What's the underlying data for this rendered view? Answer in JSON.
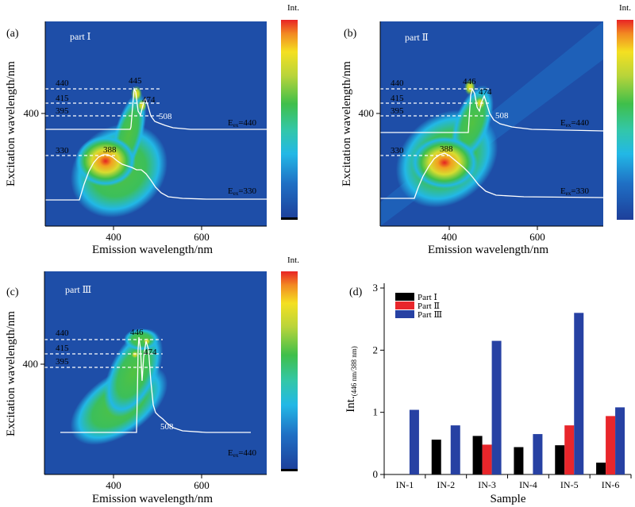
{
  "chart_data": [
    {
      "type": "heatmap",
      "panel_label": "(a)",
      "part_label": "part Ⅰ",
      "xlabel": "Emission wavelength/nm",
      "ylabel": "Excitation wavelength/nm",
      "x_ticks": [
        "400",
        "600"
      ],
      "y_ticks": [
        "400"
      ],
      "colorbar_label": "Int.",
      "excitation_lines": [
        {
          "label": "440",
          "ex": 440
        },
        {
          "label": "415",
          "ex": 415
        },
        {
          "label": "395",
          "ex": 395
        },
        {
          "label": "330",
          "ex": 330
        }
      ],
      "peaks": [
        {
          "label": "445",
          "em": 445,
          "ex": 440
        },
        {
          "label": "474",
          "em": 474,
          "ex": 415
        },
        {
          "label": "508",
          "em": 508,
          "ex": 395
        },
        {
          "label": "388",
          "em": 388,
          "ex": 330
        }
      ],
      "spectra": [
        {
          "label": "Ex=440",
          "ex_sub": "ex",
          "ex_value": "=440"
        },
        {
          "label": "Ex=330",
          "ex_sub": "ex",
          "ex_value": "=330"
        }
      ]
    },
    {
      "type": "heatmap",
      "panel_label": "(b)",
      "part_label": "part Ⅱ",
      "xlabel": "Emission wavelength/nm",
      "ylabel": "Excitation wavelength/nm",
      "x_ticks": [
        "400",
        "600"
      ],
      "y_ticks": [
        "400"
      ],
      "colorbar_label": "Int.",
      "excitation_lines": [
        {
          "label": "440",
          "ex": 440
        },
        {
          "label": "415",
          "ex": 415
        },
        {
          "label": "395",
          "ex": 395
        },
        {
          "label": "330",
          "ex": 330
        }
      ],
      "peaks": [
        {
          "label": "446",
          "em": 446,
          "ex": 440
        },
        {
          "label": "474",
          "em": 474,
          "ex": 415
        },
        {
          "label": "508",
          "em": 508,
          "ex": 395
        },
        {
          "label": "388",
          "em": 388,
          "ex": 330
        }
      ],
      "spectra": [
        {
          "label": "Ex=440",
          "ex_sub": "ex",
          "ex_value": "=440"
        },
        {
          "label": "Ex=330",
          "ex_sub": "ex",
          "ex_value": "=330"
        }
      ]
    },
    {
      "type": "heatmap",
      "panel_label": "(c)",
      "part_label": "part Ⅲ",
      "xlabel": "Emission wavelength/nm",
      "ylabel": "Excitation wavelength/nm",
      "x_ticks": [
        "400",
        "600"
      ],
      "y_ticks": [
        "400"
      ],
      "colorbar_label": "Int.",
      "excitation_lines": [
        {
          "label": "440",
          "ex": 440
        },
        {
          "label": "415",
          "ex": 415
        },
        {
          "label": "395",
          "ex": 395
        }
      ],
      "peaks": [
        {
          "label": "446",
          "em": 446,
          "ex": 440
        },
        {
          "label": "474",
          "em": 474,
          "ex": 415
        },
        {
          "label": "508",
          "em": 508,
          "ex": 395
        }
      ],
      "spectra": [
        {
          "label": "Ex=440",
          "ex_sub": "ex",
          "ex_value": "=440"
        }
      ]
    },
    {
      "type": "bar",
      "panel_label": "(d)",
      "categories": [
        "IN-1",
        "IN-2",
        "IN-3",
        "IN-4",
        "IN-5",
        "IN-6"
      ],
      "series": [
        {
          "name": "Part Ⅰ",
          "color": "#000000",
          "values": [
            0,
            0.56,
            0.62,
            0.44,
            0.47,
            0.19
          ]
        },
        {
          "name": "Part Ⅱ",
          "color": "#e8262b",
          "values": [
            0,
            0,
            0.48,
            0,
            0.79,
            0.94
          ]
        },
        {
          "name": "Part Ⅲ",
          "color": "#2741a3",
          "values": [
            1.04,
            0.79,
            2.15,
            0.65,
            2.6,
            1.08
          ]
        }
      ],
      "xlabel": "Sample",
      "ylabel": "Int.",
      "ylabel_sub": "(446 nm/388 nm)",
      "ylim": [
        0,
        3
      ],
      "y_ticks": [
        "0",
        "1",
        "2",
        "3"
      ],
      "legend_position": "top-left"
    }
  ]
}
